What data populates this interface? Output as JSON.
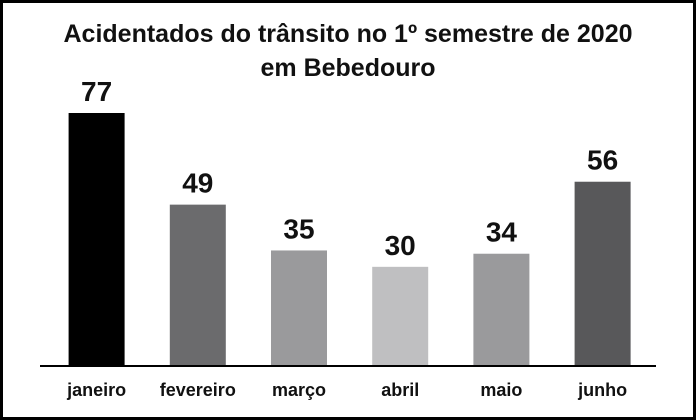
{
  "chart_data": {
    "type": "bar",
    "title": [
      "Acidentados do trânsito no 1º semestre de 2020",
      "em Bebedouro"
    ],
    "categories": [
      "janeiro",
      "fevereiro",
      "março",
      "abril",
      "maio",
      "junho"
    ],
    "values": [
      77,
      49,
      35,
      30,
      34,
      56
    ],
    "colors": [
      "#000000",
      "#6b6b6d",
      "#9a9a9c",
      "#bfbfc1",
      "#9a9a9c",
      "#58585a"
    ]
  }
}
